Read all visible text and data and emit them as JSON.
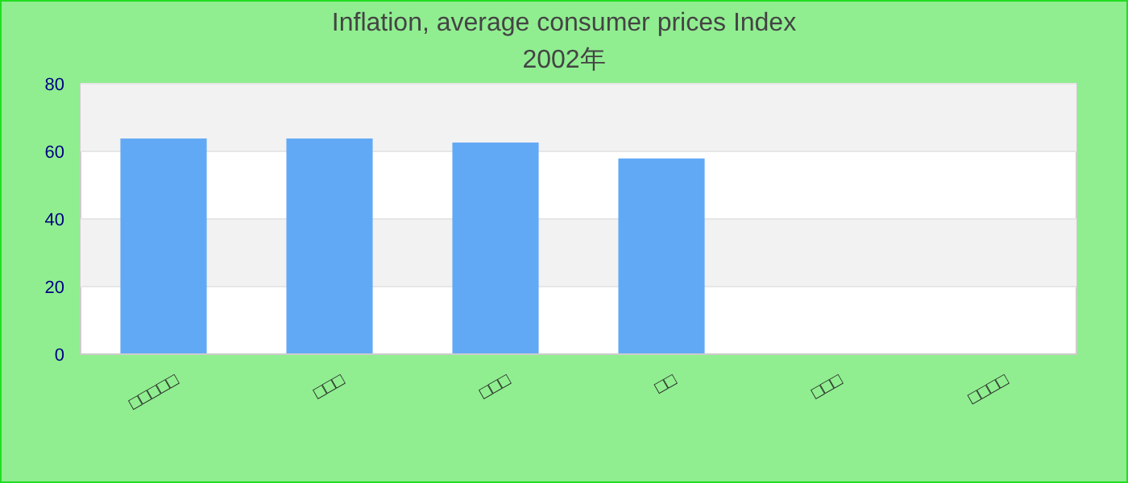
{
  "chart_data": {
    "type": "bar",
    "title": "Inflation, average consumer prices  Index",
    "subtitle": "2002年",
    "categories": [
      "□□□□□",
      "□□□",
      "□□□",
      "□□",
      "□□□",
      "□□□□"
    ],
    "values": [
      63.8,
      63.8,
      62.6,
      57.9,
      null,
      null
    ],
    "color": "#62a9f5",
    "ylim": [
      0,
      80
    ],
    "yticks": [
      0,
      20,
      40,
      60,
      80
    ],
    "grid": "y"
  }
}
